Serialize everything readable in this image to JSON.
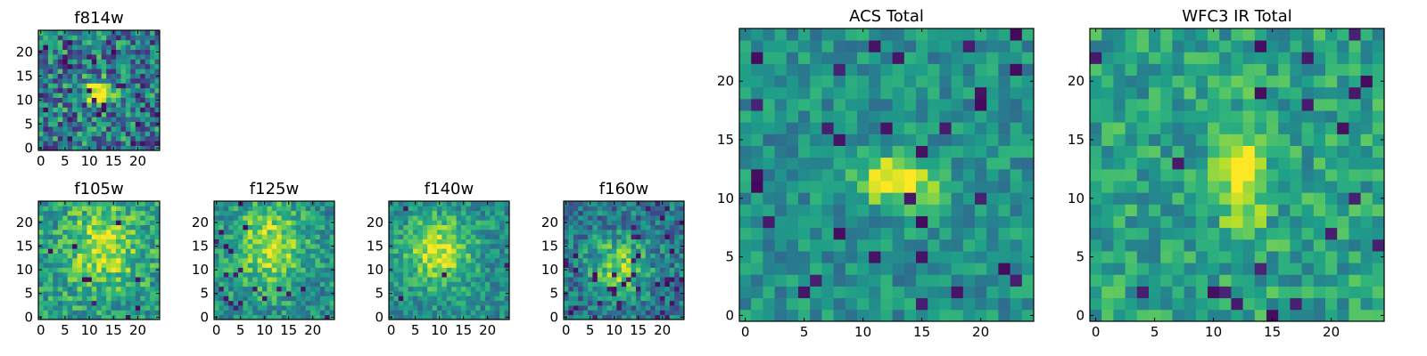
{
  "chart_data": [
    {
      "title": "f814w",
      "type": "heatmap",
      "colormap": "viridis",
      "xlim": [
        0,
        24
      ],
      "ylim": [
        0,
        24
      ],
      "xticks": [
        0,
        5,
        10,
        15,
        20
      ],
      "yticks": [
        0,
        5,
        10,
        15,
        20
      ],
      "source": {
        "cx": 12,
        "cy": 11.5,
        "sx": 2.0,
        "sy": 1.6,
        "amp": 0.85,
        "noise": 0.32,
        "base": 0.42,
        "dark": 0.06
      }
    },
    {
      "title": "f105w",
      "type": "heatmap",
      "colormap": "viridis",
      "xlim": [
        0,
        24
      ],
      "ylim": [
        0,
        24
      ],
      "xticks": [
        0,
        5,
        10,
        15,
        20
      ],
      "yticks": [
        0,
        5,
        10,
        15,
        20
      ],
      "source": {
        "cx": 13,
        "cy": 15,
        "sx": 5,
        "sy": 6,
        "amp": 0.35,
        "noise": 0.22,
        "base": 0.55,
        "dark": 0.02
      }
    },
    {
      "title": "f125w",
      "type": "heatmap",
      "colormap": "viridis",
      "xlim": [
        0,
        24
      ],
      "ylim": [
        0,
        24
      ],
      "xticks": [
        0,
        5,
        10,
        15,
        20
      ],
      "yticks": [
        0,
        5,
        10,
        15,
        20
      ],
      "source": {
        "cx": 11,
        "cy": 15,
        "sx": 5,
        "sy": 6,
        "amp": 0.4,
        "noise": 0.2,
        "base": 0.5,
        "dark": 0.03
      }
    },
    {
      "title": "f140w",
      "type": "heatmap",
      "colormap": "viridis",
      "xlim": [
        0,
        24
      ],
      "ylim": [
        0,
        24
      ],
      "xticks": [
        0,
        5,
        10,
        15,
        20
      ],
      "yticks": [
        0,
        5,
        10,
        15,
        20
      ],
      "source": {
        "cx": 10,
        "cy": 14,
        "sx": 5,
        "sy": 5,
        "amp": 0.45,
        "noise": 0.18,
        "base": 0.48,
        "dark": 0.01
      }
    },
    {
      "title": "f160w",
      "type": "heatmap",
      "colormap": "viridis",
      "xlim": [
        0,
        24
      ],
      "ylim": [
        0,
        24
      ],
      "xticks": [
        0,
        5,
        10,
        15,
        20
      ],
      "yticks": [
        0,
        5,
        10,
        15,
        20
      ],
      "source": {
        "cx": 11,
        "cy": 11,
        "sx": 4,
        "sy": 4,
        "amp": 0.45,
        "noise": 0.22,
        "base": 0.4,
        "dark": 0.06
      }
    },
    {
      "title": "ACS Total",
      "type": "heatmap",
      "colormap": "viridis",
      "xlim": [
        0,
        24
      ],
      "ylim": [
        0,
        24
      ],
      "xticks": [
        0,
        5,
        10,
        15,
        20
      ],
      "yticks": [
        0,
        5,
        10,
        15,
        20
      ],
      "source": {
        "cx": 13,
        "cy": 11.5,
        "sx": 2.4,
        "sy": 1.5,
        "amp": 0.55,
        "noise": 0.16,
        "base": 0.5,
        "dark": 0.04
      }
    },
    {
      "title": "WFC3 IR Total",
      "type": "heatmap",
      "colormap": "viridis",
      "xlim": [
        0,
        24
      ],
      "ylim": [
        0,
        24
      ],
      "xticks": [
        0,
        5,
        10,
        15,
        20
      ],
      "yticks": [
        0,
        5,
        10,
        15,
        20
      ],
      "source": {
        "cx": 12.5,
        "cy": 12,
        "sx": 1.4,
        "sy": 3.0,
        "amp": 0.5,
        "noise": 0.18,
        "base": 0.58,
        "dark": 0.035
      }
    }
  ]
}
